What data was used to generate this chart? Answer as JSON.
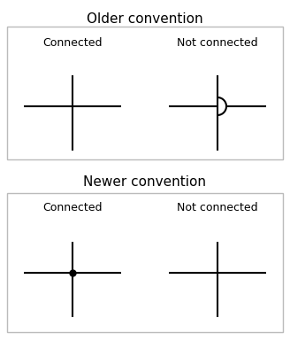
{
  "title_older": "Older convention",
  "title_newer": "Newer convention",
  "label_connected": "Connected",
  "label_not_connected": "Not connected",
  "bg_color": "#ffffff",
  "line_color": "#000000",
  "box_color": "#bbbbbb",
  "font_size_title": 11,
  "font_size_label": 9,
  "dot_color": "#000000",
  "dot_size": 5
}
